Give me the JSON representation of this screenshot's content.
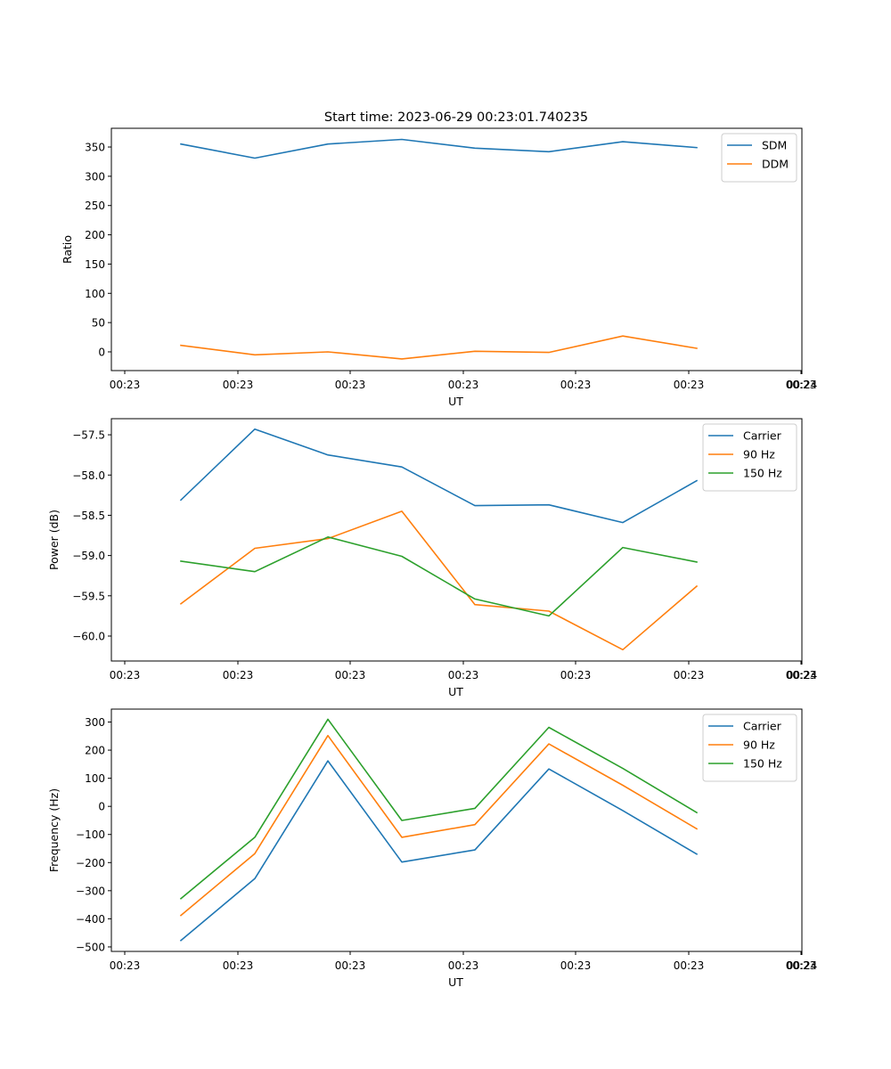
{
  "figure_title": "Start time: 2023-06-29 00:23:01.740235",
  "colors": {
    "c0": "#1f77b4",
    "c1": "#ff7f0e",
    "c2": "#2ca02c"
  },
  "chart_data": [
    {
      "type": "line",
      "title": "",
      "xlabel": "UT",
      "ylabel": "Ratio",
      "x_tick_labels": [
        "00:23",
        "00:23",
        "00:23",
        "00:23",
        "00:23",
        "00:23",
        "00:23"
      ],
      "x_last_tick_label": "00:24",
      "ylim": [
        -32,
        382
      ],
      "yticks": [
        0,
        50,
        100,
        150,
        200,
        250,
        300,
        350
      ],
      "ytick_labels": [
        "0",
        "50",
        "100",
        "150",
        "200",
        "250",
        "300",
        "350"
      ],
      "legend_position": "upper-right",
      "grid": false,
      "series": [
        {
          "name": "SDM",
          "color": "#1f77b4",
          "values": [
            355,
            331,
            355,
            363,
            348,
            342,
            359,
            349
          ]
        },
        {
          "name": "DDM",
          "color": "#ff7f0e",
          "values": [
            11,
            -5,
            0,
            -12,
            1,
            -1,
            27,
            6
          ]
        }
      ]
    },
    {
      "type": "line",
      "title": "",
      "xlabel": "UT",
      "ylabel": "Power (dB)",
      "x_tick_labels": [
        "00:23",
        "00:23",
        "00:23",
        "00:23",
        "00:23",
        "00:23",
        "00:23"
      ],
      "x_last_tick_label": "00:24",
      "ylim": [
        -60.31,
        -57.3
      ],
      "yticks": [
        -60.0,
        -59.5,
        -59.0,
        -58.5,
        -58.0,
        -57.5
      ],
      "ytick_labels": [
        "−60.0",
        "−59.5",
        "−59.0",
        "−58.5",
        "−58.0",
        "−57.5"
      ],
      "legend_position": "upper-right",
      "grid": false,
      "series": [
        {
          "name": "Carrier",
          "color": "#1f77b4",
          "values": [
            -58.31,
            -57.43,
            -57.75,
            -57.9,
            -58.38,
            -58.37,
            -58.59,
            -58.07
          ]
        },
        {
          "name": "90 Hz",
          "color": "#ff7f0e",
          "values": [
            -59.6,
            -58.91,
            -58.79,
            -58.45,
            -59.61,
            -59.69,
            -60.17,
            -59.38
          ]
        },
        {
          "name": "150 Hz",
          "color": "#2ca02c",
          "values": [
            -59.07,
            -59.2,
            -58.77,
            -59.01,
            -59.54,
            -59.75,
            -58.9,
            -59.08
          ]
        }
      ]
    },
    {
      "type": "line",
      "title": "",
      "xlabel": "UT",
      "ylabel": "Frequency (Hz)",
      "x_tick_labels": [
        "00:23",
        "00:23",
        "00:23",
        "00:23",
        "00:23",
        "00:23",
        "00:23"
      ],
      "x_last_tick_label": "00:24",
      "ylim": [
        -516,
        346
      ],
      "yticks": [
        -500,
        -400,
        -300,
        -200,
        -100,
        0,
        100,
        200,
        300
      ],
      "ytick_labels": [
        "−500",
        "−400",
        "−300",
        "−200",
        "−100",
        "0",
        "100",
        "200",
        "300"
      ],
      "legend_position": "upper-right",
      "grid": false,
      "series": [
        {
          "name": "Carrier",
          "color": "#1f77b4",
          "values": [
            -477,
            -257,
            162,
            -198,
            -155,
            133,
            -15,
            -170
          ]
        },
        {
          "name": "90 Hz",
          "color": "#ff7f0e",
          "values": [
            -388,
            -168,
            252,
            -110,
            -65,
            222,
            75,
            -80
          ]
        },
        {
          "name": "150 Hz",
          "color": "#2ca02c",
          "values": [
            -328,
            -110,
            310,
            -50,
            -7,
            281,
            135,
            -22
          ]
        }
      ]
    }
  ]
}
